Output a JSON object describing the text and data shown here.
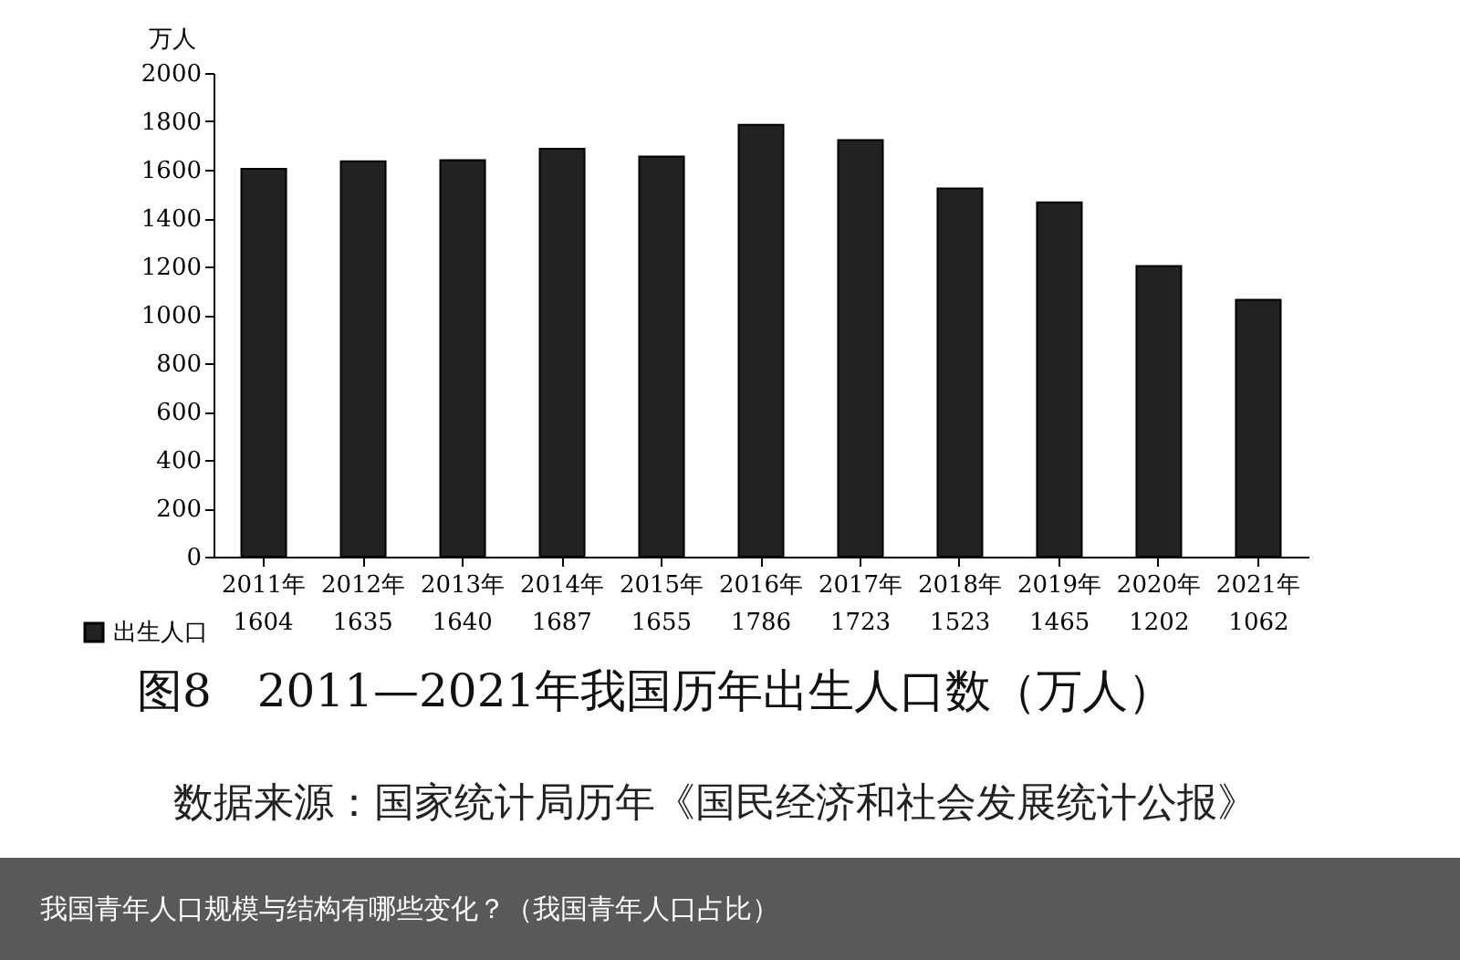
{
  "chart_data": {
    "type": "bar",
    "title": "图8　2011—2021年我国历年出生人口数（万人）",
    "ylabel": "万人",
    "categories": [
      "2011年",
      "2012年",
      "2013年",
      "2014年",
      "2015年",
      "2016年",
      "2017年",
      "2018年",
      "2019年",
      "2020年",
      "2021年"
    ],
    "series": [
      {
        "name": "出生人口",
        "color": "#222222",
        "values": [
          1604,
          1635,
          1640,
          1687,
          1655,
          1786,
          1723,
          1523,
          1465,
          1202,
          1062
        ]
      }
    ],
    "ylim": [
      0,
      2000
    ],
    "yticks": [
      0,
      200,
      400,
      600,
      800,
      1000,
      1200,
      1400,
      1600,
      1800,
      2000
    ],
    "grid": false,
    "legend": "bottom left",
    "data_labels": true,
    "annotations": [
      "数据来源：国家统计局历年《国民经济和社会发展统计公报》",
      "我国青年人口规模与结构有哪些变化？（我国青年人口占比）"
    ]
  }
}
